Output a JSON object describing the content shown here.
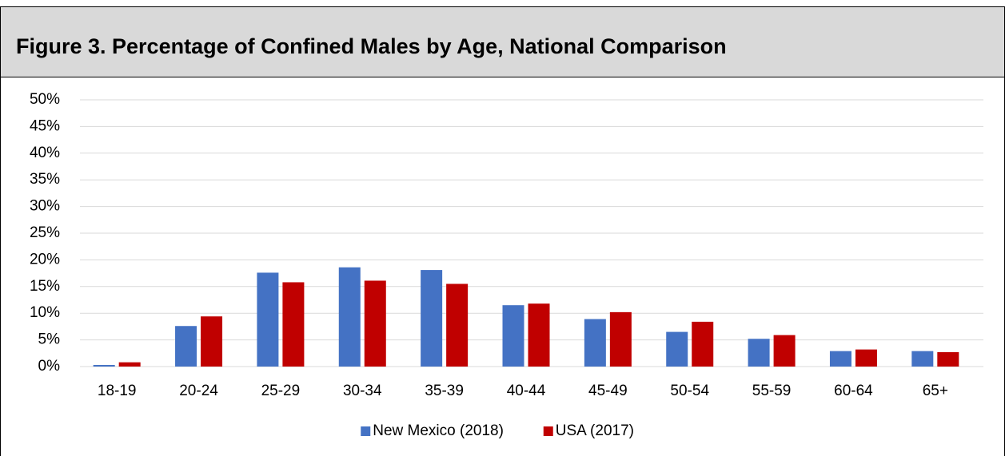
{
  "chart_data": {
    "type": "bar",
    "title": "Figure 3. Percentage of Confined Males by Age, National Comparison",
    "categories": [
      "18-19",
      "20-24",
      "25-29",
      "30-34",
      "35-39",
      "40-44",
      "45-49",
      "50-54",
      "55-59",
      "60-64",
      "65+"
    ],
    "series": [
      {
        "name": "New Mexico (2018)",
        "color": "#4472c4",
        "values": [
          0.3,
          7.6,
          17.6,
          18.6,
          18.1,
          11.5,
          8.9,
          6.5,
          5.2,
          2.9,
          2.9
        ]
      },
      {
        "name": "USA (2017)",
        "color": "#c00000",
        "values": [
          0.8,
          9.4,
          15.8,
          16.1,
          15.5,
          11.8,
          10.2,
          8.4,
          5.9,
          3.2,
          2.7
        ]
      }
    ],
    "ylim": [
      0,
      50
    ],
    "yticks": [
      {
        "value": 0,
        "label": "0%"
      },
      {
        "value": 5,
        "label": "5%"
      },
      {
        "value": 10,
        "label": "10%"
      },
      {
        "value": 15,
        "label": "15%"
      },
      {
        "value": 20,
        "label": "20%"
      },
      {
        "value": 25,
        "label": "25%"
      },
      {
        "value": 30,
        "label": "30%"
      },
      {
        "value": 35,
        "label": "35%"
      },
      {
        "value": 40,
        "label": "40%"
      },
      {
        "value": 45,
        "label": "45%"
      },
      {
        "value": 50,
        "label": "50%"
      }
    ],
    "grid": true,
    "legend": "bottom"
  }
}
